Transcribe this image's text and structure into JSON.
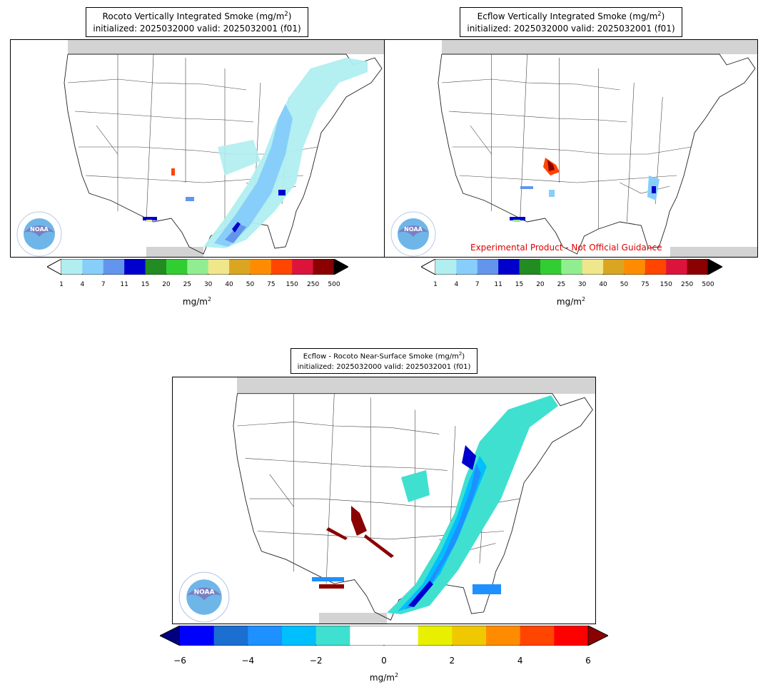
{
  "panels": [
    {
      "id": "rocoto",
      "title_line1_pre": "Rocoto Vertically Integrated Smoke (mg/m",
      "title_line1_sup": "2",
      "title_line1_post": ")",
      "title_line2": "initialized: 2025032000 valid: 2025032001 (f01)"
    },
    {
      "id": "ecflow",
      "title_line1_pre": "Ecflow Vertically Integrated Smoke (mg/m",
      "title_line1_sup": "2",
      "title_line1_post": ")",
      "title_line2": "initialized: 2025032000 valid: 2025032001 (f01)",
      "disclaimer": "Experimental Product - Not Official Guidance"
    },
    {
      "id": "difference",
      "title_line1_pre": "Ecflow - Rocoto Near-Surface Smoke (mg/m",
      "title_line1_sup": "2",
      "title_line1_post": ")",
      "title_line2": "initialized: 2025032000 valid: 2025032001 (f01)"
    }
  ],
  "smoke_colorbar": {
    "tick_labels": [
      "1",
      "4",
      "7",
      "11",
      "15",
      "20",
      "25",
      "30",
      "40",
      "50",
      "75",
      "150",
      "250",
      "500"
    ],
    "colors": [
      "#b0eef0",
      "#87cefa",
      "#6495ed",
      "#0000cd",
      "#228b22",
      "#32cd32",
      "#90ee90",
      "#f0e68c",
      "#daa520",
      "#ff8c00",
      "#ff4500",
      "#dc143c",
      "#8b0000"
    ],
    "under_color": "#ffffff",
    "over_color": "#000000",
    "unit_pre": "mg/m",
    "unit_sup": "2"
  },
  "diff_colorbar": {
    "tick_labels": [
      "−6",
      "−4",
      "−2",
      "0",
      "2",
      "4",
      "6"
    ],
    "colors": [
      "#0000ff",
      "#1a6fd0",
      "#1e90ff",
      "#00bfff",
      "#40e0d0",
      "#ffffff",
      "#ffffff",
      "#e8f000",
      "#f0c800",
      "#ff8c00",
      "#ff4500",
      "#ff0000"
    ],
    "under_color": "#000080",
    "over_color": "#8b0000",
    "unit_pre": "mg/m",
    "unit_sup": "2"
  },
  "logo": {
    "text": "NOAA",
    "ring_text": "NATIONAL OCEANIC AND ATMOSPHERIC ADMINISTRATION",
    "ring_text_bottom": "U.S. DEPARTMENT OF COMMERCE"
  },
  "colors": {
    "land_unmapped": "#d3d3d3",
    "border": "#222222",
    "state_line": "#333333"
  }
}
